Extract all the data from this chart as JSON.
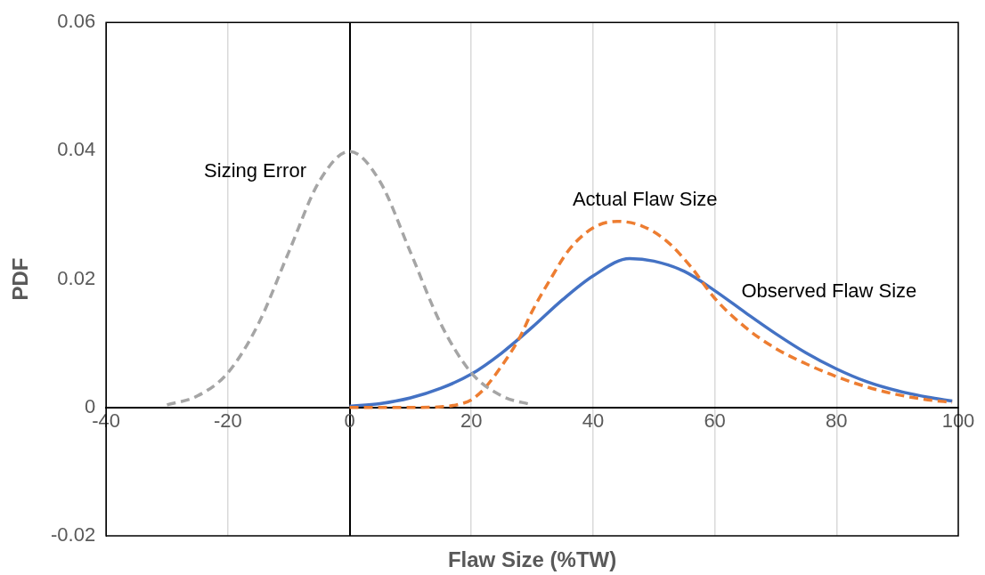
{
  "chart_data": {
    "type": "line",
    "xlabel": "Flaw Size (%TW)",
    "ylabel": "PDF",
    "xlim": [
      -40,
      100
    ],
    "xticks": [
      -40,
      -20,
      0,
      20,
      40,
      60,
      80,
      100
    ],
    "ylim": [
      -0.02,
      0.06
    ],
    "yticks": [
      -0.02,
      0,
      0.02,
      0.04,
      0.06
    ],
    "grid": "x",
    "legend": false,
    "marker": "none",
    "series": [
      {
        "name": "Sizing Error",
        "color": "#a5a5a5",
        "line_style": "dashed",
        "x": [
          -30,
          -25,
          -20,
          -15,
          -10,
          -5,
          0,
          5,
          10,
          15,
          20,
          25,
          30
        ],
        "values": [
          0.0004,
          0.0018,
          0.0054,
          0.013,
          0.0242,
          0.0352,
          0.0399,
          0.0352,
          0.0242,
          0.013,
          0.0054,
          0.0018,
          0.0004
        ]
      },
      {
        "name": "Actual Flaw Size",
        "color": "#ed7d31",
        "line_style": "dashed",
        "x": [
          0,
          10,
          15,
          18,
          20,
          22,
          25,
          28,
          30,
          33,
          36,
          40,
          44,
          48,
          52,
          56,
          60,
          65,
          70,
          75,
          80,
          85,
          90,
          95,
          99
        ],
        "values": [
          0,
          0,
          0.0001,
          0.0005,
          0.0012,
          0.0028,
          0.0065,
          0.011,
          0.015,
          0.02,
          0.0245,
          0.028,
          0.029,
          0.0283,
          0.026,
          0.022,
          0.017,
          0.0125,
          0.0092,
          0.0068,
          0.0048,
          0.0032,
          0.002,
          0.0012,
          0.0008
        ]
      },
      {
        "name": "Observed Flaw Size",
        "color": "#4472c4",
        "line_style": "solid",
        "x": [
          0,
          5,
          10,
          15,
          20,
          25,
          30,
          35,
          40,
          46,
          50,
          55,
          60,
          65,
          70,
          75,
          80,
          85,
          90,
          95,
          99
        ],
        "values": [
          0.0002,
          0.0006,
          0.0015,
          0.003,
          0.0052,
          0.0085,
          0.0125,
          0.0168,
          0.0205,
          0.0232,
          0.0228,
          0.0212,
          0.0182,
          0.0148,
          0.0115,
          0.0085,
          0.006,
          0.004,
          0.0026,
          0.0016,
          0.001
        ]
      }
    ]
  }
}
